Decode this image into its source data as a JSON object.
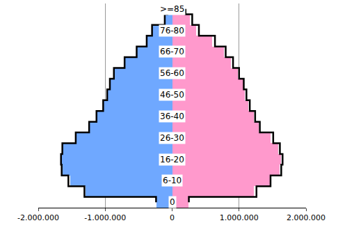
{
  "chart_data": {
    "type": "bar",
    "orientation": "horizontal",
    "stacked": false,
    "grid": true,
    "categories": [
      "0",
      null,
      "6-10",
      null,
      "16-20",
      null,
      "26-30",
      null,
      "36-40",
      null,
      "46-50",
      null,
      "56-60",
      null,
      "66-70",
      null,
      "76-80",
      null,
      ">=85"
    ],
    "series": [
      {
        "type": "bar",
        "color": "#6fa8ff",
        "values": [
          -230000,
          -1290000,
          -1520000,
          -1640000,
          -1660000,
          -1640000,
          -1440000,
          -1240000,
          -1130000,
          -1030000,
          -970000,
          -930000,
          -870000,
          -710000,
          -530000,
          -380000,
          -300000,
          -110000,
          -70000
        ]
      },
      {
        "type": "bar",
        "color": "#ff99cc",
        "values": [
          240000,
          1220000,
          1470000,
          1600000,
          1630000,
          1580000,
          1470000,
          1290000,
          1220000,
          1140000,
          1090000,
          1060000,
          980000,
          880000,
          770000,
          600000,
          360000,
          260000,
          160000
        ]
      },
      {
        "type": "line",
        "color": "#000000",
        "line_style": "solid",
        "values": [
          -240000,
          -1310000,
          -1550000,
          -1650000,
          -1660000,
          -1640000,
          -1440000,
          -1240000,
          -1130000,
          -1030000,
          -970000,
          -930000,
          -870000,
          -710000,
          -530000,
          -380000,
          -300000,
          -110000,
          -70000
        ]
      },
      {
        "type": "line",
        "color": "#000000",
        "line_style": "solid",
        "values": [
          250000,
          1260000,
          1470000,
          1630000,
          1650000,
          1610000,
          1510000,
          1310000,
          1240000,
          1160000,
          1110000,
          1070000,
          1000000,
          910000,
          800000,
          640000,
          400000,
          300000,
          200000
        ]
      }
    ],
    "xlim": [
      -2000000,
      2000000
    ],
    "xticks": [
      {
        "value": -2000000,
        "label": "-2.000.000"
      },
      {
        "value": -1000000,
        "label": "-1.000.000"
      },
      0,
      {
        "value": 1000000,
        "label": "1.000.000"
      },
      {
        "value": 2000000,
        "label": "2.000.000"
      }
    ]
  }
}
